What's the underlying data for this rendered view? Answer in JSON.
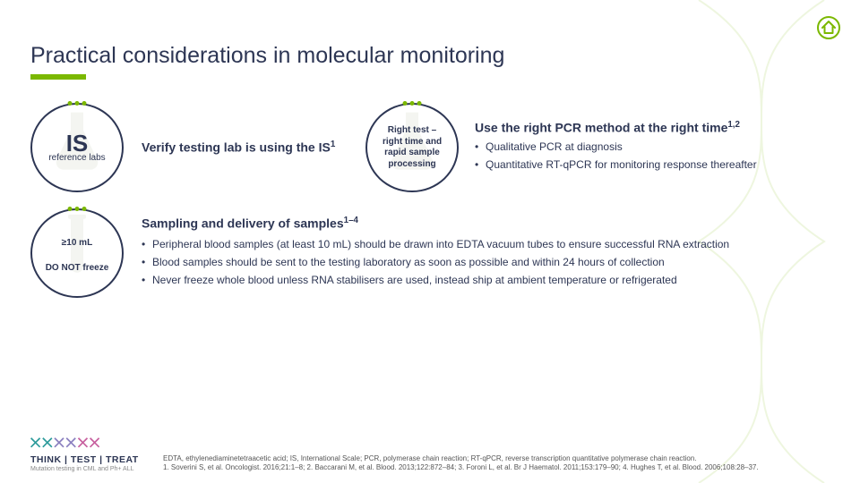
{
  "title": "Practical considerations in molecular monitoring",
  "accent_color": "#7bb800",
  "text_color": "#2d3654",
  "home_icon_stroke": "#7bb800",
  "circle1": {
    "big": "IS",
    "sub": "reference labs",
    "glyph_fill": "#cfd6c4"
  },
  "verify_heading": "Verify testing lab is using the IS",
  "verify_sup": "1",
  "circle2": {
    "line1": "Right test –",
    "line2": "right time and",
    "line3": "rapid sample",
    "line4": "processing",
    "glyph_fill": "#cfd6c4"
  },
  "pcr_heading": "Use the right PCR method at the right time",
  "pcr_sup": "1,2",
  "pcr_bullets": [
    "Qualitative PCR at diagnosis",
    "Quantitative RT-qPCR for monitoring response thereafter"
  ],
  "circle3": {
    "top": "≥10 mL",
    "bottom": "DO NOT freeze",
    "glyph_fill": "#cfd6c4"
  },
  "sampling_heading": "Sampling and delivery of samples",
  "sampling_sup": "1–4",
  "sampling_bullets": [
    "Peripheral blood samples (at least 10 mL) should be drawn into EDTA vacuum tubes to ensure successful RNA extraction",
    "Blood samples should be sent to the testing laboratory as soon as possible and within 24 hours of collection",
    "Never freeze whole blood unless RNA stabilisers are used, instead ship at ambient temperature or refrigerated"
  ],
  "logo": {
    "title": "THINK | TEST | TREAT",
    "subtitle": "Mutation testing in CML and Ph+ ALL",
    "x_colors": [
      "#2d9b9b",
      "#8a7fbf",
      "#c75f9e"
    ]
  },
  "footer_abbrev": "EDTA, ethylenediaminetetraacetic acid; IS, International Scale; PCR, polymerase chain reaction; RT-qPCR, reverse transcription quantitative polymerase chain reaction.",
  "footer_refs": "1. Soverini S, et al. Oncologist. 2016;21:1–8; 2. Baccarani M, et al. Blood. 2013;122:872–84; 3. Foroni L, et al. Br J Haematol. 2011;153:179–90; 4. Hughes T, et al. Blood. 2006;108:28–37."
}
